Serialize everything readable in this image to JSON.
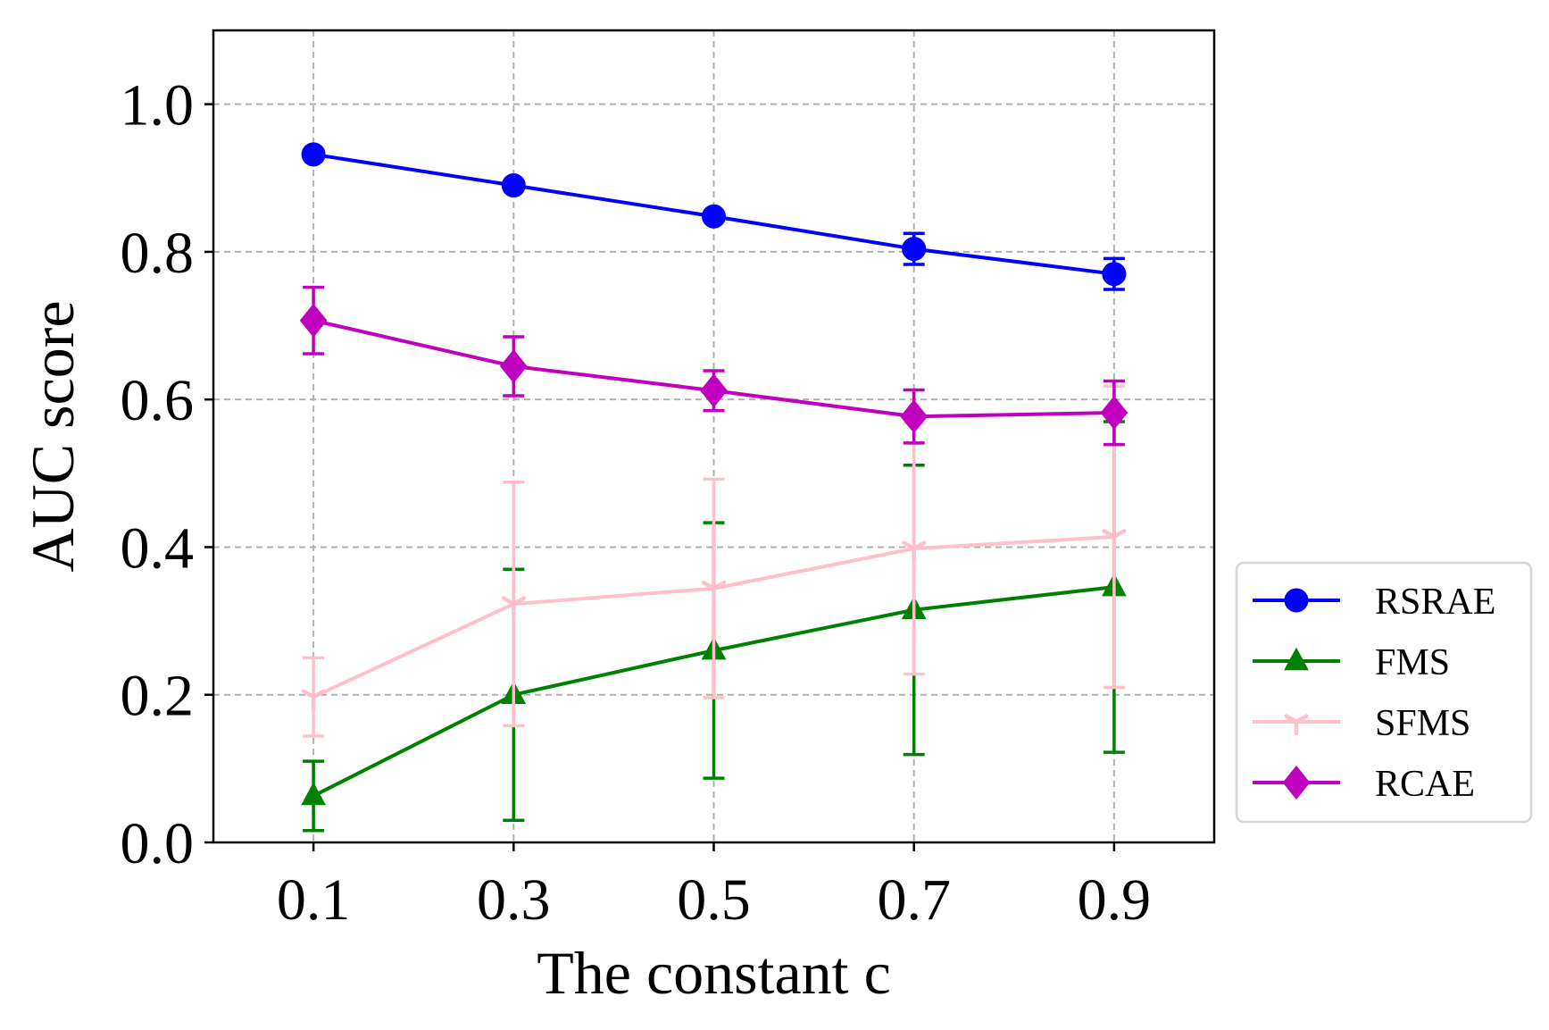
{
  "chart_data": {
    "type": "line",
    "title": "",
    "xlabel": "The constant c",
    "ylabel": "AUC score",
    "x": [
      0.1,
      0.3,
      0.5,
      0.7,
      0.9
    ],
    "x_tick_labels": [
      "0.1",
      "0.3",
      "0.5",
      "0.7",
      "0.9"
    ],
    "xlim": [
      0.0,
      1.0
    ],
    "ylim": [
      0.0,
      1.1
    ],
    "y_ticks": [
      0.0,
      0.2,
      0.4,
      0.6,
      0.8,
      1.0
    ],
    "y_tick_labels": [
      "0.0",
      "0.2",
      "0.4",
      "0.6",
      "0.8",
      "1.0"
    ],
    "grid": true,
    "legend_position": "outside right, lower",
    "series": [
      {
        "name": "RSRAE",
        "color": "#0000ff",
        "marker": "circle",
        "values": [
          0.932,
          0.89,
          0.848,
          0.804,
          0.77
        ],
        "errors": [
          0.004,
          0.004,
          0.005,
          0.021,
          0.021
        ]
      },
      {
        "name": "FMS",
        "color": "#008000",
        "marker": "triangle",
        "values": [
          0.063,
          0.2,
          0.26,
          0.315,
          0.346
        ],
        "errors": [
          0.047,
          0.17,
          0.173,
          0.196,
          0.224
        ]
      },
      {
        "name": "SFMS",
        "color": "#ffc0cb",
        "marker": "tri-down",
        "values": [
          0.197,
          0.323,
          0.344,
          0.398,
          0.414
        ],
        "errors": [
          0.053,
          0.165,
          0.148,
          0.17,
          0.204
        ]
      },
      {
        "name": "RCAE",
        "color": "#bf00bf",
        "marker": "diamond",
        "values": [
          0.707,
          0.645,
          0.612,
          0.577,
          0.582
        ],
        "errors": [
          0.045,
          0.04,
          0.027,
          0.036,
          0.043
        ]
      }
    ]
  }
}
